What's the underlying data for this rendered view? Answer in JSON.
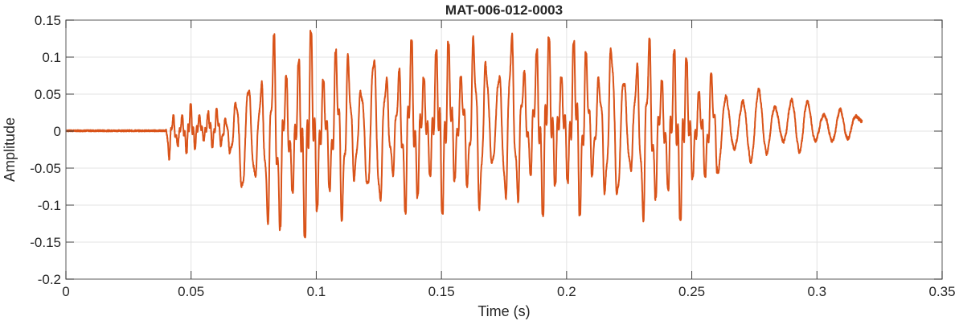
{
  "chart_data": {
    "type": "line",
    "title": "MAT-006-012-0003",
    "xlabel": "Time (s)",
    "ylabel": "Amplitude",
    "xlim": [
      0,
      0.35
    ],
    "ylim": [
      -0.2,
      0.15
    ],
    "xticks": [
      0,
      0.05,
      0.1,
      0.15,
      0.2,
      0.25,
      0.3,
      0.35
    ],
    "xtick_labels": [
      "0",
      "0.05",
      "0.1",
      "0.15",
      "0.2",
      "0.25",
      "0.3",
      "0.35"
    ],
    "yticks": [
      -0.2,
      -0.15,
      -0.1,
      -0.05,
      0,
      0.05,
      0.1,
      0.15
    ],
    "ytick_labels": [
      "-0.2",
      "-0.15",
      "-0.1",
      "-0.05",
      "0",
      "0.05",
      "0.1",
      "0.15"
    ],
    "grid": true,
    "line_color": "#D95319",
    "envelope": {
      "time": [
        0,
        0.04,
        0.041,
        0.05,
        0.06,
        0.066,
        0.07,
        0.075,
        0.082,
        0.09,
        0.1,
        0.11,
        0.13,
        0.15,
        0.18,
        0.2,
        0.24,
        0.25,
        0.26,
        0.27,
        0.29,
        0.31,
        0.318
      ],
      "max": [
        0.002,
        0.002,
        0.03,
        0.035,
        0.03,
        0.04,
        0.065,
        0.12,
        0.13,
        0.13,
        0.14,
        0.12,
        0.12,
        0.13,
        0.14,
        0.13,
        0.13,
        0.11,
        0.07,
        0.06,
        0.05,
        0.03,
        0.02
      ],
      "min": [
        -0.001,
        -0.001,
        -0.04,
        -0.03,
        -0.02,
        -0.05,
        -0.09,
        -0.13,
        -0.15,
        -0.15,
        -0.145,
        -0.12,
        -0.12,
        -0.11,
        -0.12,
        -0.11,
        -0.13,
        -0.11,
        -0.06,
        -0.05,
        -0.03,
        -0.02,
        0.01
      ]
    }
  }
}
